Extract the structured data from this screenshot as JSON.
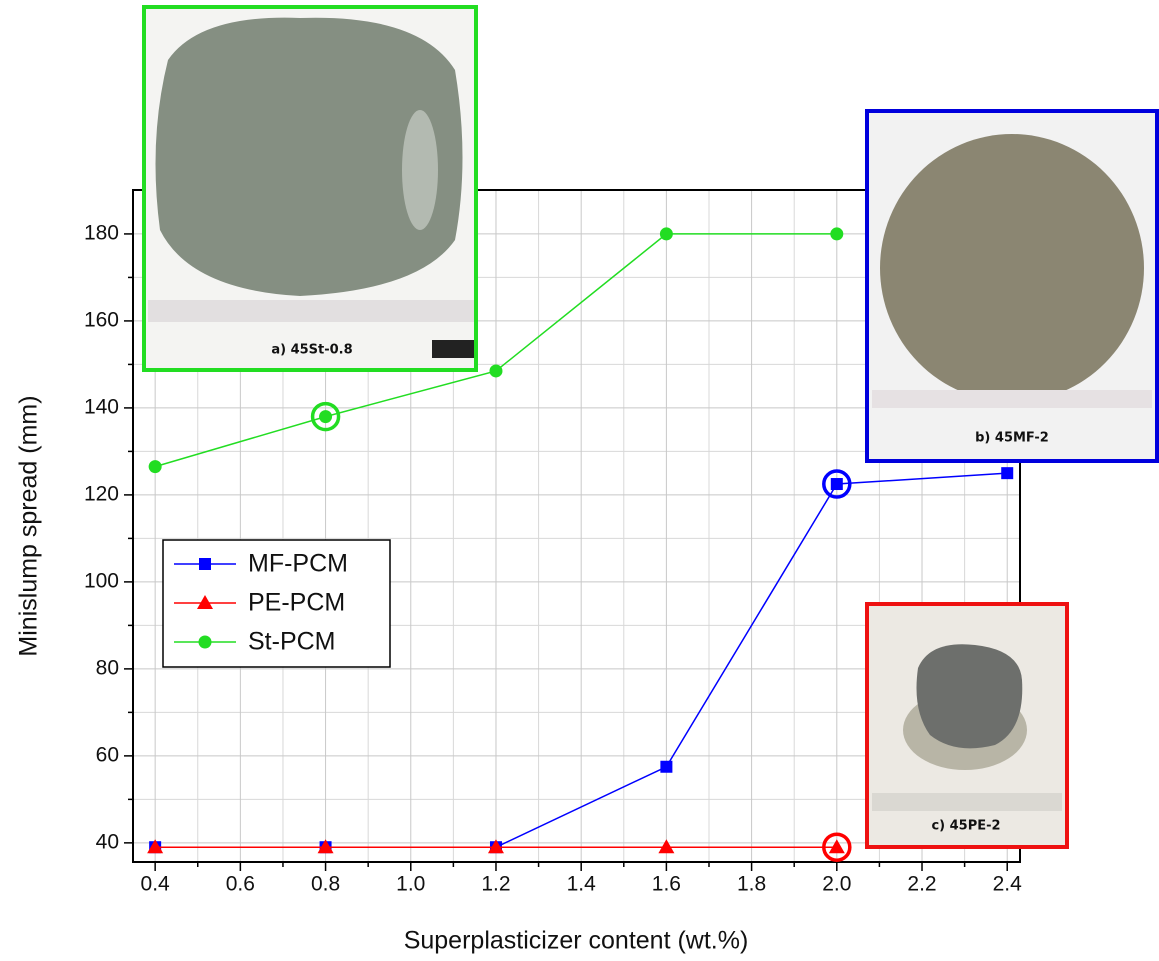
{
  "chart_data": {
    "type": "line",
    "x_label": "Superplasticizer content (wt.%)",
    "y_label": "Minislump spread (mm)",
    "x": [
      0.4,
      0.8,
      1.2,
      1.6,
      2.0,
      2.4
    ],
    "series": [
      {
        "name": "MF-PCM",
        "color": "#0000ff",
        "marker": "square",
        "values": [
          39,
          39,
          39,
          57.5,
          122.5,
          125
        ],
        "circled": 4
      },
      {
        "name": "PE-PCM",
        "color": "#ff0000",
        "marker": "triangle",
        "values": [
          39,
          39,
          39,
          39,
          39,
          null
        ],
        "circled": 4
      },
      {
        "name": "St-PCM",
        "color": "#22dd22",
        "marker": "circle",
        "values": [
          126.5,
          138,
          148.5,
          180,
          180,
          null
        ],
        "circled": 1
      }
    ],
    "xlim": [
      0.348,
      2.43
    ],
    "ylim": [
      35.6,
      190.1
    ],
    "xticks": [
      0.4,
      0.6,
      0.8,
      {
        "value": 1,
        "label": "1.0"
      },
      1.2,
      1.4,
      1.6,
      1.8,
      {
        "value": 2,
        "label": "2.0"
      },
      2.2,
      2.4
    ],
    "x_minor_ticks": [
      0.5,
      0.7,
      0.9,
      1.1,
      1.3,
      1.5,
      1.7,
      1.9,
      2.1,
      2.3
    ],
    "yticks": [
      40,
      60,
      80,
      100,
      120,
      140,
      160,
      180
    ],
    "y_minor_ticks": [
      50,
      70,
      90,
      110,
      130,
      150,
      170
    ],
    "grid": true,
    "legend": "center-left",
    "insets": [
      "a) 45St-0.8",
      "b) 45MF-2",
      "c) 45PE-2"
    ]
  }
}
